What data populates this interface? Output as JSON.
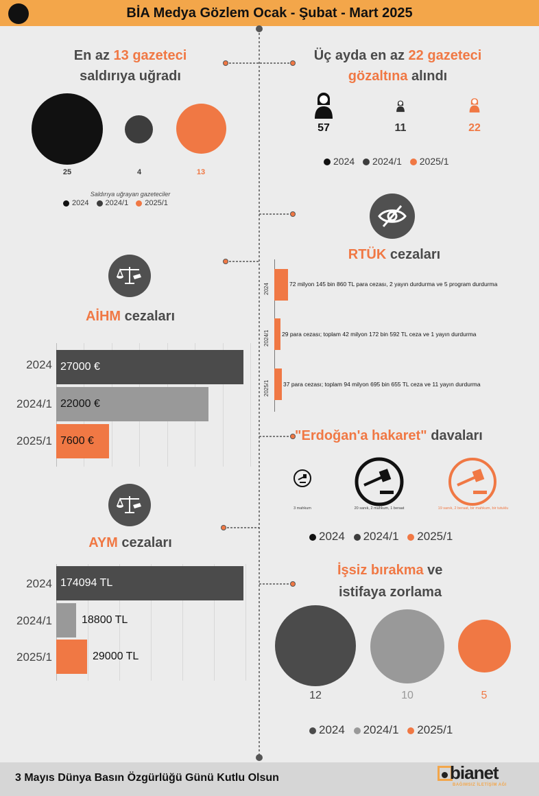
{
  "header": {
    "title": "BİA Medya Gözlem Ocak - Şubat - Mart 2025"
  },
  "attacks": {
    "title_pre": "En az ",
    "title_highlight": "13 gazeteci",
    "title_line2": "saldırıya uğradı",
    "values": [
      "25",
      "4",
      "13"
    ],
    "caption": "Saldırıya uğrayan gazeteciler",
    "legend": [
      "2024",
      "2024/1",
      "2025/1"
    ]
  },
  "detentions": {
    "title_pre": "Üç ayda en az ",
    "title_highlight": "22 gazeteci",
    "title_line2_highlight": "gözaltına",
    "title_line2_rest": " alındı",
    "values": [
      "57",
      "11",
      "22"
    ],
    "legend": [
      "2024",
      "2024/1",
      "2025/1"
    ]
  },
  "rtuk": {
    "title_highlight": "RTÜK",
    "title_rest": " cezaları",
    "rows": [
      {
        "year": "2024",
        "text": "72 milyon 145 bin 860 TL para cezası, 2 yayın durdurma ve 5 program durdurma"
      },
      {
        "year": "2024/1",
        "text": "29 para cezası; toplam 42 milyon 172 bin 592 TL ceza ve 1 yayın durdurma"
      },
      {
        "year": "2025/1",
        "text": "37 para cezası; toplam 94 milyon 695 bin 655 TL ceza ve 11 yayın durdurma"
      }
    ]
  },
  "aihm": {
    "title_highlight": "AİHM",
    "title_rest": " cezaları",
    "rows": [
      {
        "year": "2024",
        "label": "27000 €",
        "value": 27000
      },
      {
        "year": "2024/1",
        "label": "22000 €",
        "value": 22000
      },
      {
        "year": "2025/1",
        "label": "7600 €",
        "value": 7600
      }
    ]
  },
  "aym": {
    "title_highlight": "AYM",
    "title_rest": " cezaları",
    "rows": [
      {
        "year": "2024",
        "label": "174094 TL",
        "value": 174094
      },
      {
        "year": "2024/1",
        "label": "18800 TL",
        "value": 18800
      },
      {
        "year": "2025/1",
        "label": "29000 TL",
        "value": 29000
      }
    ]
  },
  "erdogan": {
    "title_highlight": "\"Erdoğan'a hakaret\"",
    "title_rest": " davaları",
    "captions": [
      "3 mahkum",
      "20 sanık, 2 mahkum, 1 beraat",
      "19 sanık, 2 beraat, bir mahkum, bir tutuklu"
    ],
    "legend": [
      "2024",
      "2024/1",
      "2025/1"
    ]
  },
  "dismissal": {
    "title_highlight": "İşsiz bırakma",
    "title_rest": " ve",
    "title_line2": "istifaya zorlama",
    "values": [
      "12",
      "10",
      "5"
    ],
    "legend": [
      "2024",
      "2024/1",
      "2025/1"
    ]
  },
  "footer": {
    "text": "3 Mayıs Dünya Basın Özgürlüğü Günü Kutlu Olsun",
    "logo": "bianet",
    "logo_sub": "BAĞIMSIZ İLETİŞİM AĞI"
  },
  "colors": {
    "black": "#111111",
    "dark": "#505050",
    "grey": "#999999",
    "orange": "#f07844",
    "header": "#f3a64a"
  }
}
